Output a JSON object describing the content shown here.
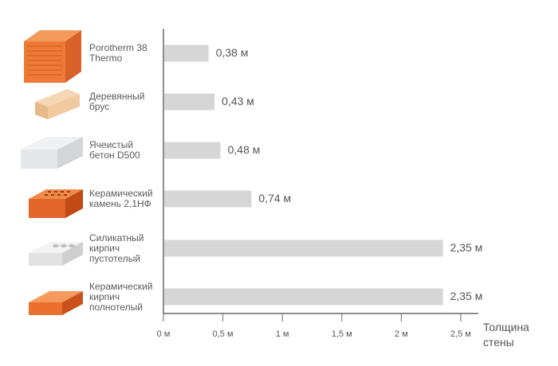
{
  "chart_data": {
    "type": "bar",
    "orientation": "horizontal",
    "categories": [
      "Porotherm 38\nThermo",
      "Деревянный\nбрус",
      "Ячеистый\nбетон D500",
      "Керамический\nкамень 2,1НФ",
      "Силикатный\nкирпич\nпустотелый",
      "Керамический\nкирпич\nполнотелый"
    ],
    "values": [
      0.38,
      0.43,
      0.48,
      0.74,
      2.35,
      2.35
    ],
    "value_labels": [
      "0,38 м",
      "0,43 м",
      "0,48 м",
      "0,74 м",
      "2,35 м",
      "2,35 м"
    ],
    "xlim": [
      0,
      2.5
    ],
    "ticks": [
      0,
      0.5,
      1,
      1.5,
      2,
      2.5
    ],
    "tick_labels": [
      "0 м",
      "0,5 м",
      "1 м",
      "1,5 м",
      "2 м",
      "2,5 м"
    ],
    "xlabel": "Толщина\nстены",
    "title": "",
    "ylabel": "",
    "grid": false,
    "bar_color": "#d6d6d6",
    "icons": [
      "porotherm-block-icon",
      "wooden-beam-icon",
      "aerated-concrete-block-icon",
      "ceramic-block-icon",
      "silicate-brick-icon",
      "ceramic-brick-icon"
    ]
  }
}
